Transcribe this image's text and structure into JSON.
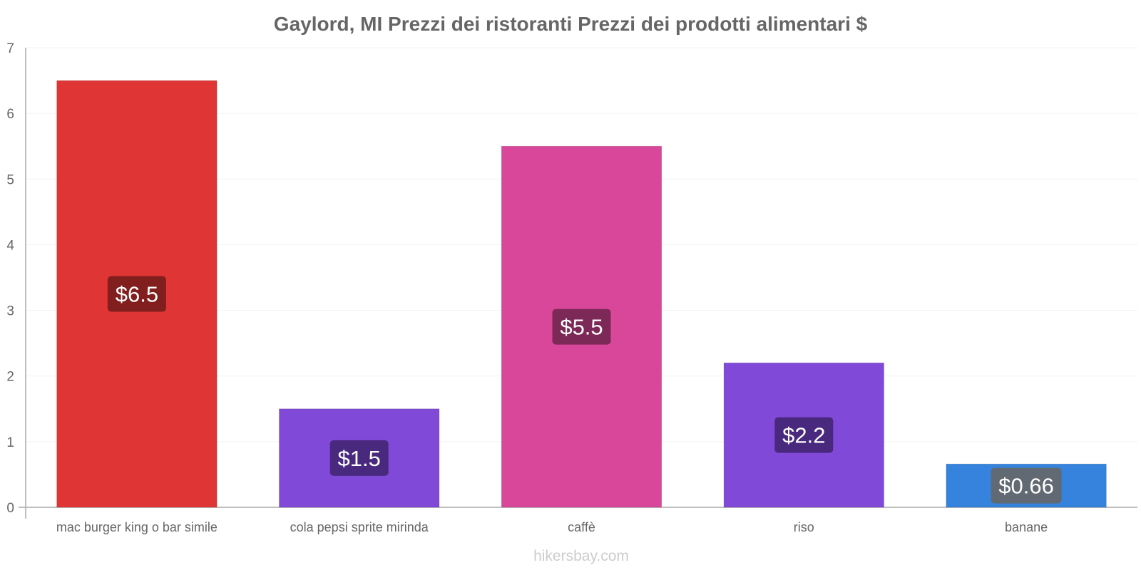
{
  "chart_data": {
    "type": "bar",
    "title": "Gaylord, MI Prezzi dei ristoranti Prezzi dei prodotti alimentari $",
    "categories": [
      "mac burger king o bar simile",
      "cola pepsi sprite mirinda",
      "caffè",
      "riso",
      "banane"
    ],
    "values": [
      6.5,
      1.5,
      5.5,
      2.2,
      0.66
    ],
    "value_labels": [
      "$6.5",
      "$1.5",
      "$5.5",
      "$2.2",
      "$0.66"
    ],
    "bar_colors": [
      "#e03535",
      "#8049d8",
      "#d84799",
      "#8049d8",
      "#3583dd"
    ],
    "label_bg_colors": [
      "#771c1c",
      "#432673",
      "#722650",
      "#432673",
      "#666666"
    ],
    "ylim": [
      0,
      7
    ],
    "yticks": [
      "0",
      "1",
      "2",
      "3",
      "4",
      "5",
      "6",
      "7"
    ],
    "xlabel": "",
    "ylabel": "",
    "grid": true
  },
  "footer": "hikersbay.com"
}
